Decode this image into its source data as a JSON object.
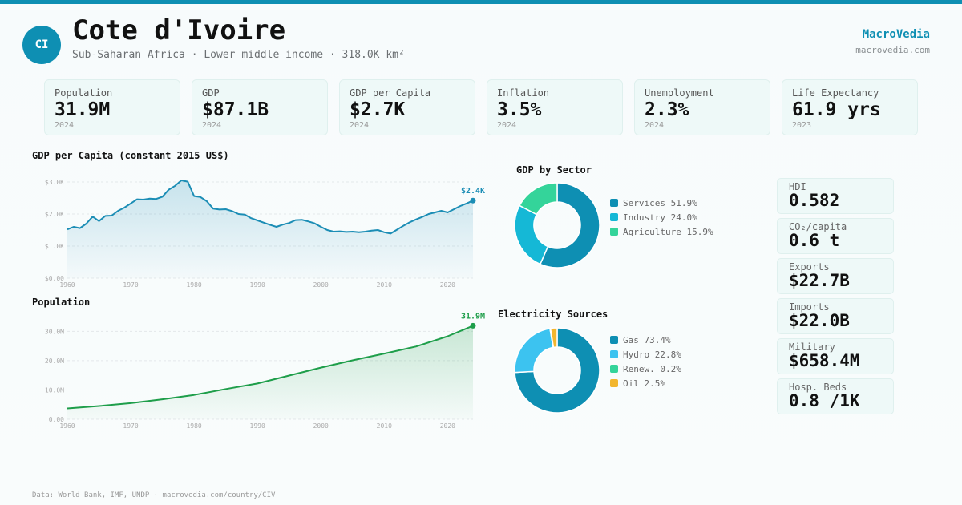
{
  "header": {
    "badge": "CI",
    "title": "Cote d'Ivoire",
    "subtitle": "Sub-Saharan Africa · Lower middle income · 318.0K km²",
    "brand": "MacroVedia",
    "brand_url": "macrovedia.com"
  },
  "kpis": [
    {
      "label": "Population",
      "value": "31.9M",
      "year": "2024"
    },
    {
      "label": "GDP",
      "value": "$87.1B",
      "year": "2024"
    },
    {
      "label": "GDP per Capita",
      "value": "$2.7K",
      "year": "2024"
    },
    {
      "label": "Inflation",
      "value": "3.5%",
      "year": "2024"
    },
    {
      "label": "Unemployment",
      "value": "2.3%",
      "year": "2024"
    },
    {
      "label": "Life Expectancy",
      "value": "61.9 yrs",
      "year": "2023"
    }
  ],
  "side_stats": [
    {
      "label": "HDI",
      "value": "0.582"
    },
    {
      "label": "CO₂/capita",
      "value": "0.6 t"
    },
    {
      "label": "Exports",
      "value": "$22.7B"
    },
    {
      "label": "Imports",
      "value": "$22.0B"
    },
    {
      "label": "Military",
      "value": "$658.4M"
    },
    {
      "label": "Hosp. Beds",
      "value": "0.8 /1K"
    }
  ],
  "colors": {
    "accent": "#0e8fb3",
    "gdp_line": "#1b8db5",
    "pop_line": "#1e9e4a",
    "services": "#0e8fb3",
    "industry": "#15b8d6",
    "agriculture": "#34d49a",
    "gas": "#0e8fb3",
    "hydro": "#3cc3f0",
    "renew": "#34d49a",
    "oil": "#f2b62e"
  },
  "footer": "Data: World Bank, IMF, UNDP · macrovedia.com/country/CIV",
  "chart_data": [
    {
      "id": "gdp_per_capita",
      "type": "area",
      "title": "GDP per Capita (constant 2015 US$)",
      "xticks": [
        "1960",
        "1970",
        "1980",
        "1990",
        "2000",
        "2010",
        "2020"
      ],
      "yticks": [
        "$0.00",
        "$1.0K",
        "$2.0K",
        "$3.0K"
      ],
      "xlim": [
        1960,
        2024
      ],
      "ylim": [
        0,
        3000
      ],
      "end_label": "$2.4K",
      "x": [
        1960,
        1961,
        1962,
        1963,
        1964,
        1965,
        1966,
        1967,
        1968,
        1969,
        1970,
        1971,
        1972,
        1973,
        1974,
        1975,
        1976,
        1977,
        1978,
        1979,
        1980,
        1981,
        1982,
        1983,
        1984,
        1985,
        1986,
        1987,
        1988,
        1989,
        1990,
        1991,
        1992,
        1993,
        1994,
        1995,
        1996,
        1997,
        1998,
        1999,
        2000,
        2001,
        2002,
        2003,
        2004,
        2005,
        2006,
        2007,
        2008,
        2009,
        2010,
        2011,
        2012,
        2013,
        2014,
        2015,
        2016,
        2017,
        2018,
        2019,
        2020,
        2021,
        2022,
        2023,
        2024
      ],
      "values": [
        1520,
        1600,
        1560,
        1700,
        1920,
        1780,
        1940,
        1950,
        2100,
        2200,
        2330,
        2460,
        2450,
        2480,
        2470,
        2540,
        2760,
        2880,
        3050,
        3010,
        2560,
        2530,
        2400,
        2170,
        2140,
        2150,
        2090,
        2000,
        1980,
        1870,
        1800,
        1730,
        1660,
        1600,
        1670,
        1720,
        1810,
        1820,
        1770,
        1710,
        1600,
        1500,
        1450,
        1460,
        1440,
        1450,
        1430,
        1450,
        1480,
        1500,
        1430,
        1390,
        1510,
        1630,
        1740,
        1830,
        1910,
        2000,
        2050,
        2100,
        2050,
        2150,
        2250,
        2330,
        2420
      ]
    },
    {
      "id": "population",
      "type": "area",
      "title": "Population",
      "xticks": [
        "1960",
        "1970",
        "1980",
        "1990",
        "2000",
        "2010",
        "2020"
      ],
      "yticks": [
        "0.00",
        "10.0M",
        "20.0M",
        "30.0M"
      ],
      "xlim": [
        1960,
        2024
      ],
      "ylim": [
        0,
        32000000
      ],
      "end_label": "31.9M",
      "x": [
        1960,
        1965,
        1970,
        1975,
        1980,
        1985,
        1990,
        1995,
        2000,
        2005,
        2010,
        2015,
        2020,
        2024
      ],
      "values": [
        3700000,
        4500000,
        5500000,
        6800000,
        8300000,
        10300000,
        12200000,
        14900000,
        17600000,
        20100000,
        22400000,
        24800000,
        28300000,
        31900000
      ]
    },
    {
      "id": "gdp_by_sector",
      "type": "pie",
      "title": "GDP by Sector",
      "labels": [
        "Services 51.9%",
        "Industry 24.0%",
        "Agriculture 15.9%"
      ],
      "values": [
        51.9,
        24.0,
        15.9
      ]
    },
    {
      "id": "electricity_sources",
      "type": "pie",
      "title": "Electricity Sources",
      "labels": [
        "Gas 73.4%",
        "Hydro 22.8%",
        "Renew. 0.2%",
        "Oil 2.5%"
      ],
      "values": [
        73.4,
        22.8,
        0.2,
        2.5
      ]
    }
  ]
}
